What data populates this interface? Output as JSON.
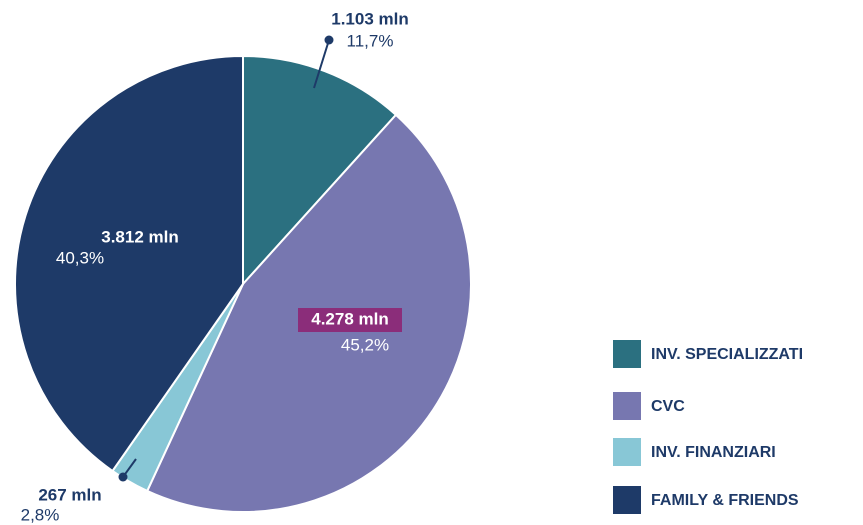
{
  "chart_data": {
    "type": "pie",
    "categories": [
      "INV. SPECIALIZZATI",
      "CVC",
      "INV. FINANZIARI",
      "FAMILY & FRIENDS"
    ],
    "values": [
      11.7,
      45.2,
      2.8,
      40.3
    ],
    "value_labels": [
      "11,7%",
      "45,2%",
      "2,8%",
      "40,3%"
    ],
    "amounts": [
      1103,
      4278,
      267,
      3812
    ],
    "amount_labels": [
      "1.103 mln",
      "4.278 mln",
      "267 mln",
      "3.812 mln"
    ],
    "colors": [
      "#2b7080",
      "#7777b0",
      "#88c7d6",
      "#1e3a68"
    ],
    "legend": "right"
  }
}
